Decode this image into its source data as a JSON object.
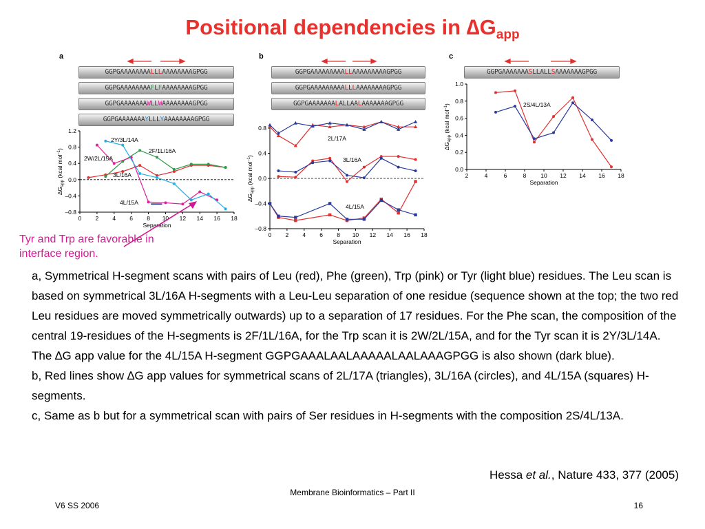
{
  "slide": {
    "title_main": "Positional dependencies in ",
    "title_delta": "∆",
    "title_g": "G",
    "title_sub": "app",
    "annotation": "Tyr and Trp are favorable in interface region.",
    "caption": [
      {
        "pre": "a, Symmetrical H-segment scans with pairs of Leu (red), Phe (green), Trp (pink) or Tyr (light blue) residues. The Leu scan is based on symmetrical 3L/16A H-segments with a Leu-Leu separation of one residue (sequence shown at the top; the two red Leu residues are moved symmetrically outwards) up to a separation of 17 residues. For the Phe scan, the composition of the central 19-residues of the H-segments is 2F/1L/16A, for the Trp scan it is 2W/2L/15A, and for the Tyr scan it is 2Y/3L/14A. The ",
        "delta": "∆",
        "post": "G app value for the 4L/15A H-segment GGPGAAALAALAAAAALAALAAAGPGG is also shown (dark blue)."
      },
      {
        "pre": "b, Red lines show ",
        "delta": "∆",
        "post": "G app values for symmetrical scans of 2L/17A (triangles), 3L/16A (circles), and 4L/15A (squares) H-segments."
      },
      {
        "pre": "c, Same as b but for a symmetrical scan with pairs of Ser residues in H-segments with the composition 2S/4L/13A.",
        "delta": "",
        "post": ""
      }
    ],
    "reference_pre": "Hessa ",
    "reference_em": "et al.",
    "reference_post": ", Nature 433, 377 (2005)",
    "footer_center": "Membrane Bioinformatics – Part II",
    "footer_left": "V6 SS 2006",
    "page_number": "16"
  },
  "panels": {
    "a": {
      "letter": "a",
      "sequences": [
        [
          {
            "t": "GGPGAAAAAAAA"
          },
          {
            "t": "L",
            "c": "hl"
          },
          {
            "t": "L"
          },
          {
            "t": "L",
            "c": "hl"
          },
          {
            "t": "AAAAAAAAGPGG"
          }
        ],
        [
          {
            "t": "GGPGAAAAAAAA"
          },
          {
            "t": "F",
            "c": "hlg"
          },
          {
            "t": "L"
          },
          {
            "t": "F",
            "c": "hlg"
          },
          {
            "t": "AAAAAAAAGPGG"
          }
        ],
        [
          {
            "t": "GGPGAAAAAAA"
          },
          {
            "t": "W",
            "c": "hlp"
          },
          {
            "t": "LL"
          },
          {
            "t": "W",
            "c": "hlp"
          },
          {
            "t": "AAAAAAAAGPGG"
          }
        ],
        [
          {
            "t": "GGPGAAAAAAA"
          },
          {
            "t": "Y",
            "c": "hlb"
          },
          {
            "t": "LLL"
          },
          {
            "t": "Y",
            "c": "hlb"
          },
          {
            "t": "AAAAAAAAGPGG"
          }
        ]
      ],
      "ylabel_pre": "∆G",
      "ylabel_sub": "app",
      "ylabel_post": " (kcal mol",
      "ylabel_sup": "–1",
      "ylabel_end": ")",
      "xlabel": "Separation",
      "labels": [
        "2Y/3L/14A",
        "2F/1L/16A",
        "2W/2L/15A",
        "3L/16A",
        "4L/15A"
      ]
    },
    "b": {
      "letter": "b",
      "sequences": [
        [
          {
            "t": "GGPGAAAAAAAAA"
          },
          {
            "t": "LL",
            "c": "hl"
          },
          {
            "t": "AAAAAAAAAGPGG"
          }
        ],
        [
          {
            "t": "GGPGAAAAAAAAA"
          },
          {
            "t": "L",
            "c": "hl"
          },
          {
            "t": "L"
          },
          {
            "t": "L",
            "c": "hl"
          },
          {
            "t": "AAAAAAAAGPGG"
          }
        ],
        [
          {
            "t": "GGPGAAAAAAA"
          },
          {
            "t": "L",
            "c": "hl"
          },
          {
            "t": "ALLAA"
          },
          {
            "t": "L",
            "c": "hl"
          },
          {
            "t": "AAAAAAAGPGG"
          }
        ]
      ],
      "ylabel_pre": "∆G",
      "ylabel_sub": "app",
      "ylabel_post": " (kcal mol",
      "ylabel_sup": "–1",
      "ylabel_end": ")",
      "xlabel": "Separation",
      "labels": [
        "2L/17A",
        "3L/16A",
        "4L/15A"
      ]
    },
    "c": {
      "letter": "c",
      "sequences": [
        [
          {
            "t": "GGPGAAAAAAA"
          },
          {
            "t": "S",
            "c": "hl"
          },
          {
            "t": "LLALL"
          },
          {
            "t": "S",
            "c": "hl"
          },
          {
            "t": "AAAAAAAGPGG"
          }
        ]
      ],
      "ylabel_pre": "∆G",
      "ylabel_sub": "app",
      "ylabel_post": " (kcal mol",
      "ylabel_sup": "–1",
      "ylabel_end": ")",
      "xlabel": "Separation",
      "labels": [
        "2S/4L/13A"
      ]
    }
  },
  "chart_data": [
    {
      "type": "line",
      "panel": "a",
      "xlabel": "Separation",
      "ylabel": "∆Gapp (kcal mol–1)",
      "xlim": [
        0,
        18
      ],
      "ylim": [
        -0.8,
        1.2
      ],
      "xticks": [
        0,
        2,
        4,
        6,
        8,
        10,
        12,
        14,
        16,
        18
      ],
      "yticks": [
        -0.8,
        -0.4,
        0.0,
        0.4,
        0.8,
        1.2
      ],
      "ytick_labels": [
        "–0.8",
        "–0.4",
        "0.0",
        "0.4",
        "0.8",
        "1.2"
      ],
      "series": [
        {
          "name": "Leu 3L/16A",
          "color": "#e03030",
          "x": [
            1,
            3,
            5,
            7,
            9,
            11,
            13,
            15,
            17
          ],
          "y": [
            0.05,
            0.12,
            0.2,
            0.35,
            0.1,
            0.2,
            0.35,
            0.35,
            0.3
          ]
        },
        {
          "name": "Phe 2F/1L/16A",
          "color": "#2e9a4a",
          "x": [
            3,
            5,
            7,
            9,
            11,
            13,
            15,
            17
          ],
          "y": [
            0.08,
            0.45,
            0.72,
            0.55,
            0.25,
            0.38,
            0.38,
            0.3
          ]
        },
        {
          "name": "Trp 2W/2L/15A",
          "color": "#e0209a",
          "x": [
            2,
            4,
            6,
            8,
            10,
            12,
            14,
            16
          ],
          "y": [
            0.85,
            0.4,
            0.55,
            -0.55,
            -0.57,
            -0.6,
            -0.3,
            -0.5
          ]
        },
        {
          "name": "Tyr 2Y/3L/14A",
          "color": "#22aee8",
          "x": [
            3,
            5,
            7,
            9,
            11,
            13,
            15,
            17
          ],
          "y": [
            0.95,
            0.85,
            0.15,
            0.05,
            -0.1,
            -0.5,
            -0.35,
            -0.72
          ]
        },
        {
          "name": "4L/15A",
          "color": "#1e2f8c",
          "x": [
            8.3,
            9.5
          ],
          "y": [
            -0.6,
            -0.6
          ]
        }
      ],
      "labels": [
        "2Y/3L/14A",
        "2F/1L/16A",
        "2W/2L/15A",
        "3L/16A",
        "4L/15A"
      ]
    },
    {
      "type": "line",
      "panel": "b",
      "xlabel": "Separation",
      "ylabel": "∆Gapp (kcal mol–1)",
      "xlim": [
        0,
        18
      ],
      "ylim": [
        -0.8,
        0.8
      ],
      "xticks": [
        0,
        2,
        4,
        6,
        8,
        10,
        12,
        14,
        16,
        18
      ],
      "yticks": [
        -0.8,
        -0.4,
        0.0,
        0.4,
        0.8
      ],
      "ytick_labels": [
        "–0.8",
        "–0.4",
        "0.0",
        "0.4",
        "0.8"
      ],
      "series": [
        {
          "name": "2L/17A",
          "color": "#e03030",
          "marker": "triangle",
          "x": [
            0,
            1,
            3,
            5,
            7,
            9,
            11,
            13,
            15,
            17
          ],
          "y": [
            0.82,
            0.68,
            0.52,
            0.85,
            0.82,
            0.85,
            0.82,
            0.9,
            0.82,
            0.82
          ]
        },
        {
          "name": "2L/17A",
          "color": "#2a3b9a",
          "marker": "triangle",
          "x": [
            0,
            1,
            3,
            5,
            7,
            9,
            11,
            13,
            15,
            17
          ],
          "y": [
            0.85,
            0.72,
            0.88,
            0.83,
            0.88,
            0.85,
            0.78,
            0.9,
            0.78,
            0.9
          ]
        },
        {
          "name": "3L/16A",
          "color": "#e03030",
          "marker": "circle",
          "x": [
            1,
            3,
            5,
            7,
            9,
            11,
            13,
            15,
            17
          ],
          "y": [
            0.03,
            0.02,
            0.28,
            0.32,
            -0.05,
            0.18,
            0.35,
            0.35,
            0.3
          ]
        },
        {
          "name": "3L/16A",
          "color": "#2a3b9a",
          "marker": "circle",
          "x": [
            1,
            3,
            5,
            7,
            9,
            11,
            13,
            15,
            17
          ],
          "y": [
            0.12,
            0.1,
            0.25,
            0.28,
            0.05,
            0.01,
            0.32,
            0.18,
            0.12
          ]
        },
        {
          "name": "4L/15A",
          "color": "#e03030",
          "marker": "square",
          "x": [
            0,
            1,
            3,
            7,
            9,
            11,
            13,
            15,
            17
          ],
          "y": [
            -0.4,
            -0.62,
            -0.67,
            -0.58,
            -0.67,
            -0.63,
            -0.33,
            -0.55,
            -0.05
          ]
        },
        {
          "name": "4L/15A",
          "color": "#2a3b9a",
          "marker": "square",
          "x": [
            0,
            1,
            3,
            7,
            9,
            11,
            13,
            15,
            17
          ],
          "y": [
            -0.4,
            -0.6,
            -0.62,
            -0.4,
            -0.65,
            -0.65,
            -0.35,
            -0.5,
            -0.58
          ]
        }
      ],
      "labels": [
        "2L/17A",
        "3L/16A",
        "4L/15A"
      ]
    },
    {
      "type": "line",
      "panel": "c",
      "xlabel": "Separation",
      "ylabel": "∆Gapp (kcal mol–1)",
      "xlim": [
        2,
        18
      ],
      "ylim": [
        0.0,
        1.0
      ],
      "xticks": [
        2,
        4,
        6,
        8,
        10,
        12,
        14,
        16,
        18
      ],
      "yticks": [
        0.0,
        0.2,
        0.4,
        0.6,
        0.8,
        1.0
      ],
      "ytick_labels": [
        "0.0",
        "0.2",
        "0.4",
        "0.6",
        "0.8",
        "1.0"
      ],
      "series": [
        {
          "name": "2S/4L/13A",
          "color": "#e03030",
          "x": [
            5,
            7,
            9,
            11,
            13,
            15,
            17
          ],
          "y": [
            0.9,
            0.92,
            0.32,
            0.62,
            0.84,
            0.35,
            0.03
          ]
        },
        {
          "name": "2S/4L/13A",
          "color": "#2a3b9a",
          "x": [
            5,
            7,
            9,
            11,
            13,
            15,
            17
          ],
          "y": [
            0.67,
            0.74,
            0.36,
            0.43,
            0.78,
            0.58,
            0.34
          ]
        }
      ],
      "labels": [
        "2S/4L/13A"
      ]
    }
  ]
}
